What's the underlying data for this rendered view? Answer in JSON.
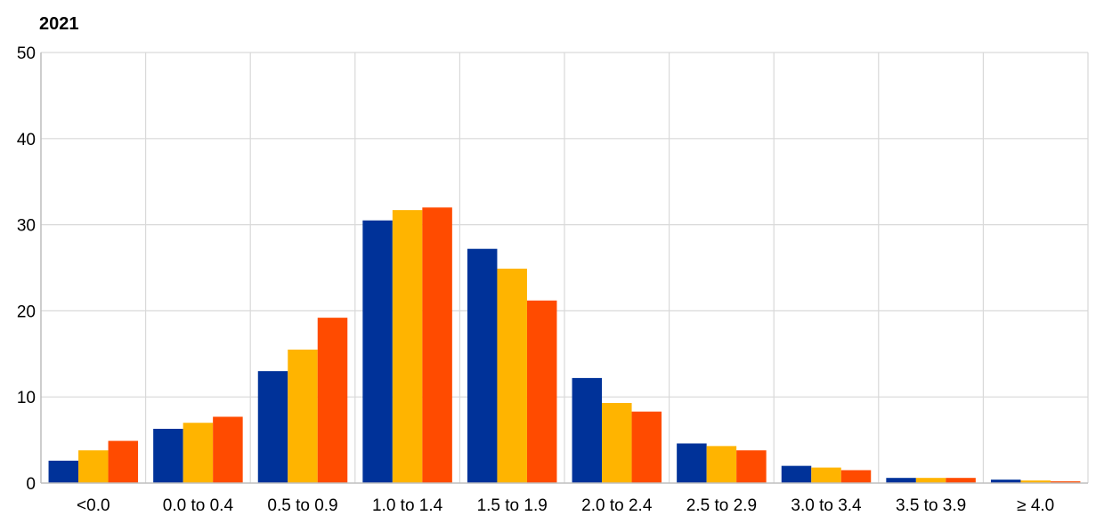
{
  "chart_data": {
    "type": "bar",
    "title": "2021",
    "xlabel": "",
    "ylabel": "",
    "ylim": [
      0,
      50
    ],
    "yticks": [
      0,
      10,
      20,
      30,
      40,
      50
    ],
    "grid": true,
    "categories": [
      "<0.0",
      "0.0 to 0.4",
      "0.5 to 0.9",
      "1.0 to 1.4",
      "1.5 to 1.9",
      "2.0 to 2.4",
      "2.5 to 2.9",
      "3.0 to 3.4",
      "3.5 to 3.9",
      "≥ 4.0"
    ],
    "series": [
      {
        "color": "#003299",
        "values": [
          2.6,
          6.3,
          13.0,
          30.5,
          27.2,
          12.2,
          4.6,
          2.0,
          0.6,
          0.4
        ]
      },
      {
        "color": "#FFB400",
        "values": [
          3.8,
          7.0,
          15.5,
          31.7,
          24.9,
          9.3,
          4.3,
          1.8,
          0.6,
          0.3
        ]
      },
      {
        "color": "#FF4B00",
        "values": [
          4.9,
          7.7,
          19.2,
          32.0,
          21.2,
          8.3,
          3.8,
          1.5,
          0.6,
          0.2
        ]
      }
    ]
  }
}
